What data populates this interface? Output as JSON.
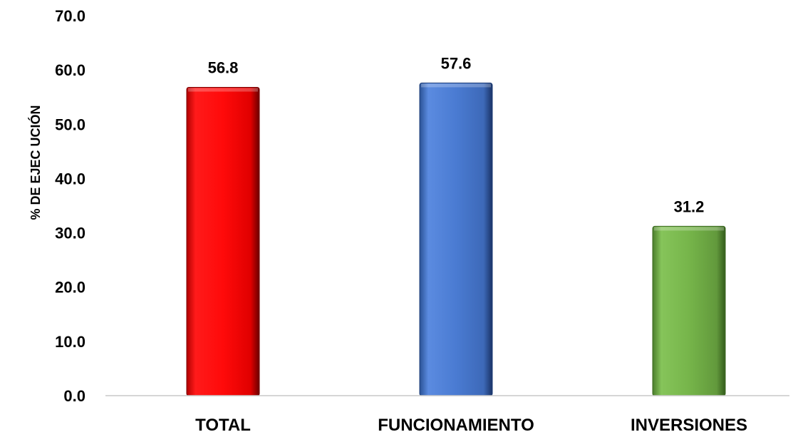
{
  "chart_data": {
    "type": "bar",
    "title": "",
    "xlabel": "",
    "ylabel": "% DE EJEC UCIÓN",
    "categories": [
      "TOTAL",
      "FUNCIONAMIENTO",
      "INVERSIONES"
    ],
    "values": [
      56.8,
      57.6,
      31.2
    ],
    "value_labels": [
      "56.8",
      "57.6",
      "31.2"
    ],
    "bar_colors": [
      "#ff0a0a",
      "#4a7bd2",
      "#76b54a"
    ],
    "bar_edge_colors": [
      "#7a0000",
      "#1f3f78",
      "#3d6a22"
    ],
    "ylim": [
      0,
      70
    ],
    "yticks": [
      0,
      10,
      20,
      30,
      40,
      50,
      60,
      70
    ],
    "ytick_labels": [
      "0.0",
      "10.0",
      "20.0",
      "30.0",
      "40.0",
      "50.0",
      "60.0",
      "70.0"
    ],
    "grid": false,
    "legend": "none"
  }
}
